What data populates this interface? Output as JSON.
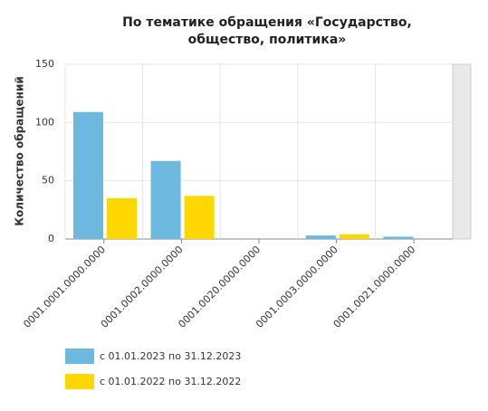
{
  "chart_data": {
    "type": "bar",
    "title": [
      "По тематике обращения «Государство,",
      "общество, политика»"
    ],
    "y_label": "Количество обращений",
    "categories": [
      "0001.0001.0000.0000",
      "0001.0002.0000.0000",
      "0001.0020.0000.0000",
      "0001.0003.0000.0000",
      "0001.0021.0000.0000"
    ],
    "series": [
      {
        "name": "с 01.01.2023 по 31.12.2023",
        "color": "#6cb8de",
        "values": [
          109,
          67,
          0,
          3,
          2
        ]
      },
      {
        "name": "с 01.01.2022 по 31.12.2022",
        "color": "#ffd700",
        "values": [
          35,
          37,
          0,
          4,
          0
        ]
      }
    ],
    "ylim": [
      0,
      150
    ],
    "yticks": [
      0,
      50,
      100,
      150
    ],
    "grid": true
  }
}
